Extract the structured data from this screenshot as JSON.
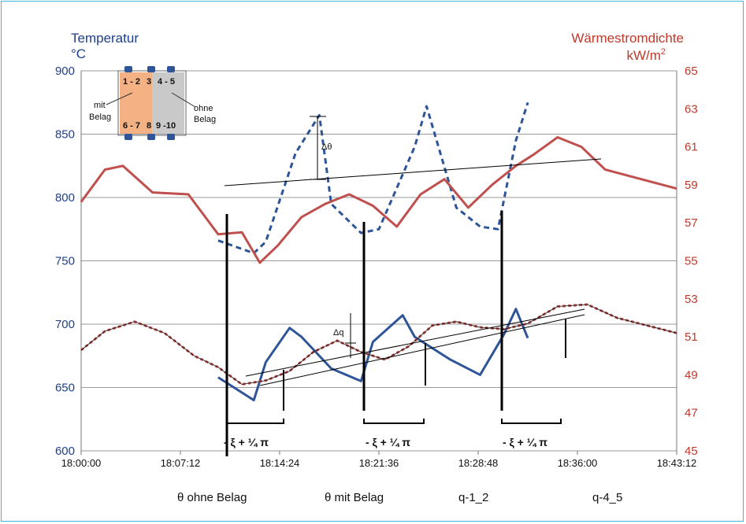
{
  "chart_data": {
    "type": "line",
    "left_axis": {
      "title_line1": "Temperatur",
      "title_line2": "°C",
      "ticks": [
        "900",
        "850",
        "800",
        "750",
        "700",
        "650",
        "600"
      ],
      "ylim": [
        600,
        900
      ]
    },
    "right_axis": {
      "title_line1": "Wärmestromdichte",
      "title_line2_base": "kW/m",
      "title_line2_sup": "2",
      "ticks": [
        "65",
        "63",
        "61",
        "59",
        "57",
        "55",
        "53",
        "51",
        "49",
        "47",
        "45"
      ],
      "ylim": [
        45,
        65
      ]
    },
    "x_ticks": [
      "18:00:00",
      "18:07:12",
      "18:14:24",
      "18:21:36",
      "18:28:48",
      "18:36:00",
      "18:43:12"
    ],
    "legend": [
      "θ ohne Belag",
      "θ mit Belag",
      "q-1_2",
      "q-4_5"
    ],
    "annotations": {
      "delta_theta": "Δθ",
      "delta_q": "Δq",
      "phase": "- ξ + ¼ π"
    },
    "inset": {
      "cells": [
        "1 - 2",
        "3",
        "4 - 5",
        "6 - 7",
        "8",
        "9 -10"
      ],
      "mit_line1": "mit",
      "mit_line2": "Belag",
      "ohne_line1": "ohne",
      "ohne_line2": "Belag"
    },
    "colors": {
      "blue": "#1f3f8a",
      "series_blue": "#2e5597",
      "red": "#c0392b",
      "series_red": "#c0504d",
      "grid": "#9a9a9a",
      "frame": "#3fb3d8",
      "inset_left": "#f4b183",
      "inset_right": "#c9c9c9"
    },
    "series": [
      {
        "name": "θ ohne Belag",
        "axis": "left",
        "style": "dashed",
        "x": [
          0.23,
          0.29,
          0.31,
          0.36,
          0.4,
          0.42,
          0.47,
          0.5,
          0.56,
          0.58,
          0.63,
          0.67,
          0.7,
          0.73,
          0.75
        ],
        "y": [
          766,
          756,
          765,
          835,
          865,
          795,
          772,
          775,
          840,
          872,
          792,
          777,
          775,
          845,
          875
        ]
      },
      {
        "name": "θ mit Belag",
        "axis": "left",
        "style": "solid",
        "x": [
          0.23,
          0.29,
          0.31,
          0.35,
          0.37,
          0.42,
          0.47,
          0.49,
          0.54,
          0.56,
          0.62,
          0.67,
          0.71,
          0.73,
          0.75
        ],
        "y": [
          658,
          640,
          670,
          697,
          690,
          665,
          655,
          686,
          707,
          690,
          672,
          660,
          692,
          712,
          689
        ]
      },
      {
        "name": "q-1_2",
        "axis": "right",
        "style": "solid",
        "x": [
          0.0,
          0.04,
          0.07,
          0.12,
          0.18,
          0.23,
          0.27,
          0.3,
          0.33,
          0.37,
          0.41,
          0.45,
          0.49,
          0.53,
          0.57,
          0.61,
          0.65,
          0.69,
          0.73,
          0.76,
          0.8,
          0.84,
          0.88,
          1.0
        ],
        "y": [
          58.1,
          59.8,
          60.0,
          58.6,
          58.5,
          56.4,
          56.5,
          54.9,
          55.8,
          57.3,
          58.0,
          58.5,
          57.9,
          56.8,
          58.5,
          59.3,
          57.8,
          59.0,
          60.0,
          60.6,
          61.5,
          61.0,
          59.8,
          58.8
        ]
      },
      {
        "name": "q-4_5",
        "axis": "right",
        "style": "dotted",
        "x": [
          0.0,
          0.04,
          0.09,
          0.14,
          0.19,
          0.23,
          0.27,
          0.31,
          0.35,
          0.39,
          0.43,
          0.47,
          0.51,
          0.55,
          0.59,
          0.63,
          0.67,
          0.71,
          0.75,
          0.8,
          0.85,
          0.9,
          1.0
        ],
        "y": [
          50.3,
          51.3,
          51.8,
          51.2,
          50.0,
          49.4,
          48.5,
          48.7,
          49.2,
          50.2,
          50.8,
          50.2,
          49.8,
          50.5,
          51.6,
          51.8,
          51.5,
          51.4,
          51.7,
          52.6,
          52.7,
          52.0,
          51.2
        ]
      }
    ]
  }
}
